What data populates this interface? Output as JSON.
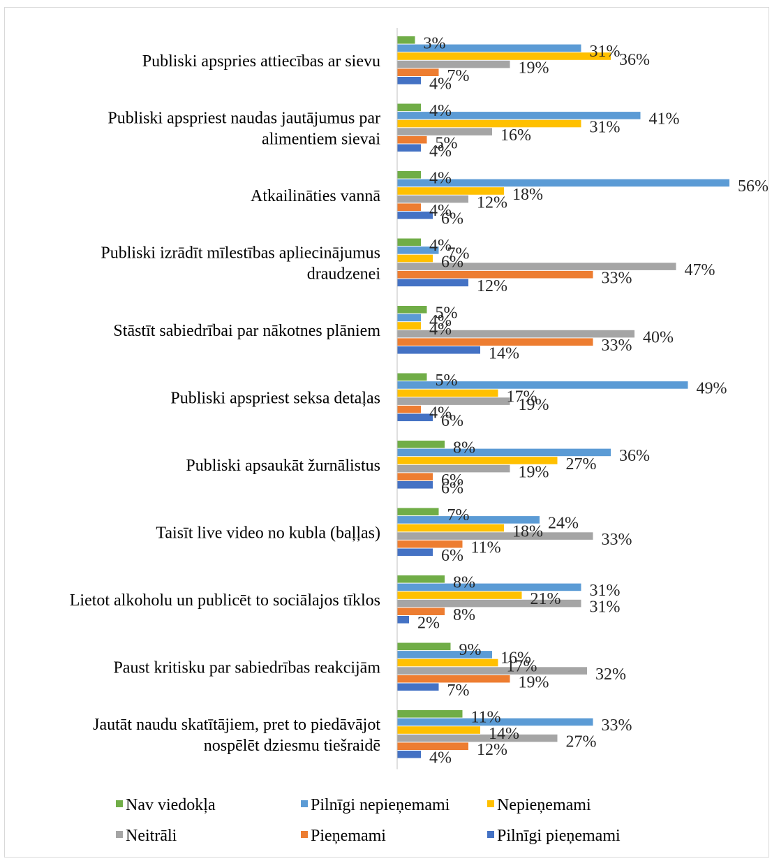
{
  "chart_data": {
    "type": "bar",
    "orientation": "horizontal",
    "categories": [
      "Publiski apspries attiecības ar sievu",
      "Publiski apspriest naudas jautājumus par alimentiem sievai",
      "Atkailināties vannā",
      "Publiski izrādīt mīlestības apliecinājumus draudzenei",
      "Stāstīt sabiedrībai par nākotnes plāniem",
      "Publiski apspriest seksa detaļas",
      "Publiski apsaukāt žurnālistus",
      "Taisīt live video no kubla (baļļas)",
      "Lietot alkoholu un publicēt to sociālajos tīklos",
      "Paust kritisku par sabiedrības reakcijām",
      "Jautāt naudu skatītājiem, pret to piedāvājot nospēlēt dziesmu tiešraidē"
    ],
    "category_lines": [
      [
        "Publiski apspries attiecības ar sievu"
      ],
      [
        "Publiski apspriest naudas jautājumus par",
        "alimentiem sievai"
      ],
      [
        "Atkailināties vannā"
      ],
      [
        "Publiski izrādīt mīlestības apliecinājumus",
        "draudzenei"
      ],
      [
        "Stāstīt sabiedrībai par nākotnes plāniem"
      ],
      [
        "Publiski apspriest seksa detaļas"
      ],
      [
        "Publiski apsaukāt žurnālistus"
      ],
      [
        "Taisīt live video no kubla (baļļas)"
      ],
      [
        "Lietot alkoholu un publicēt to sociālajos tīklos"
      ],
      [
        "Paust kritisku par sabiedrības reakcijām"
      ],
      [
        "Jautāt naudu skatītājiem, pret to piedāvājot",
        "nospēlēt dziesmu tiešraidē"
      ]
    ],
    "series": [
      {
        "name": "Nav viedokļa",
        "color": "#70ad47",
        "values": [
          3,
          4,
          4,
          4,
          5,
          5,
          8,
          7,
          8,
          9,
          11
        ]
      },
      {
        "name": "Pilnīgi nepieņemami",
        "color": "#5b9bd5",
        "values": [
          31,
          41,
          56,
          7,
          4,
          49,
          36,
          24,
          31,
          16,
          33
        ]
      },
      {
        "name": "Nepieņemami",
        "color": "#ffc000",
        "values": [
          36,
          31,
          18,
          6,
          4,
          17,
          27,
          18,
          21,
          17,
          14
        ]
      },
      {
        "name": "Neitrāli",
        "color": "#a5a5a5",
        "values": [
          19,
          16,
          12,
          47,
          40,
          19,
          19,
          33,
          31,
          32,
          27
        ]
      },
      {
        "name": "Pieņemami",
        "color": "#ed7d31",
        "values": [
          7,
          5,
          4,
          33,
          33,
          4,
          6,
          11,
          8,
          19,
          12
        ]
      },
      {
        "name": "Pilnīgi pieņemami",
        "color": "#4472c4",
        "values": [
          4,
          4,
          6,
          12,
          14,
          6,
          6,
          6,
          2,
          7,
          4
        ]
      }
    ],
    "value_suffix": "%",
    "xlim": [
      0,
      60
    ],
    "legend_position": "bottom",
    "grid": false
  }
}
